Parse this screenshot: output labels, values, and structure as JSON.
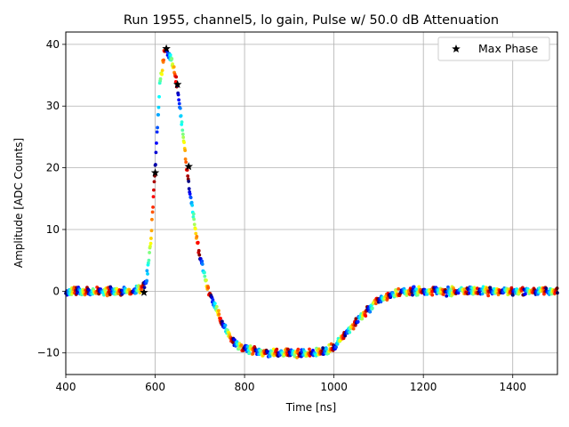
{
  "chart_data": {
    "type": "scatter",
    "title": "Run 1955, channel5, lo gain, Pulse w/ 50.0 dB Attenuation",
    "xlabel": "Time [ns]",
    "ylabel": "Amplitude [ADC Counts]",
    "xlim": [
      400,
      1500
    ],
    "ylim": [
      -13.5,
      42
    ],
    "xticks": [
      400,
      600,
      800,
      1000,
      1200,
      1400
    ],
    "yticks": [
      -10,
      0,
      10,
      20,
      30,
      40
    ],
    "grid": true,
    "legend": {
      "position": "top-right",
      "entries": [
        "Max Phase"
      ]
    },
    "pulse_shape": {
      "t": [
        400,
        540,
        570,
        580,
        590,
        600,
        610,
        620,
        625,
        630,
        640,
        650,
        660,
        670,
        680,
        690,
        700,
        720,
        740,
        760,
        780,
        800,
        820,
        850,
        900,
        950,
        980,
        1000,
        1020,
        1050,
        1080,
        1100,
        1130,
        1150,
        1180,
        1200,
        1300,
        1400,
        1500
      ],
      "y": [
        0,
        0,
        0.2,
        1.5,
        8,
        20,
        33,
        38.5,
        39.5,
        38.5,
        36.5,
        33,
        27,
        20,
        15,
        10,
        5.5,
        0,
        -3.5,
        -6.5,
        -8.5,
        -9.2,
        -9.6,
        -10,
        -10,
        -10,
        -9.8,
        -9,
        -7.5,
        -5,
        -2.8,
        -1.5,
        -0.6,
        -0.2,
        0,
        0,
        0,
        0,
        0
      ]
    },
    "max_phase_points": [
      {
        "x": 575,
        "y": -0.2
      },
      {
        "x": 600,
        "y": 19.2
      },
      {
        "x": 625,
        "y": 39.3
      },
      {
        "x": 650,
        "y": 33.5
      },
      {
        "x": 675,
        "y": 20.2
      }
    ],
    "colormap": "jet",
    "phase_count": 25
  }
}
